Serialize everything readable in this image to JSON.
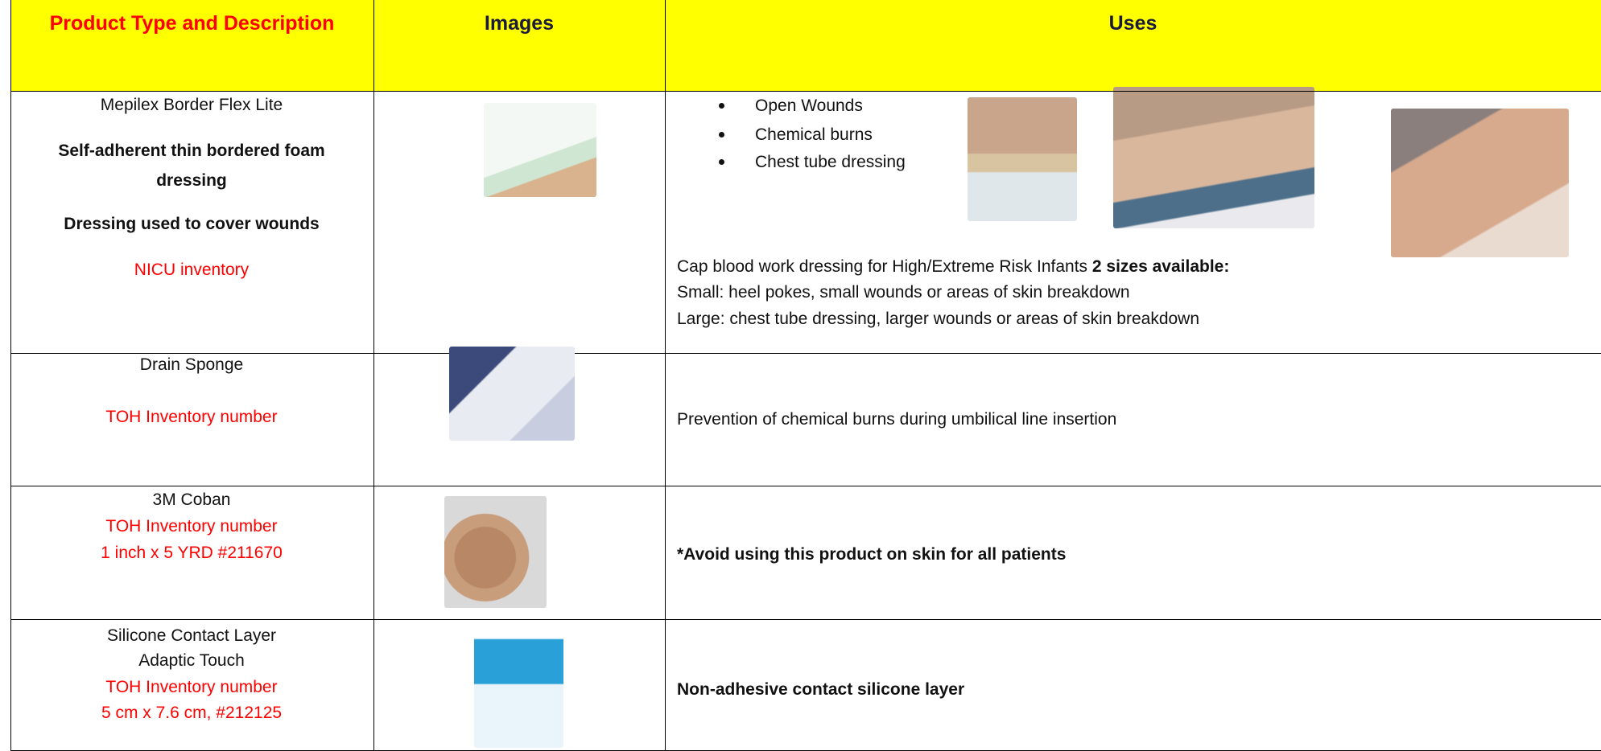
{
  "header": {
    "columns": [
      "Product Type and Description",
      "Images",
      "Uses"
    ]
  },
  "rows": [
    {
      "product": [
        {
          "text": "Mepilex Border Flex Lite",
          "style": "normal"
        },
        {
          "text": "Self-adherent thin bordered foam",
          "style": "bold"
        },
        {
          "text": "dressing",
          "style": "bold"
        },
        {
          "text": "Dressing used to cover wounds",
          "style": "bold"
        },
        {
          "text": "NICU inventory",
          "style": "red"
        }
      ],
      "bullets": [
        "Open Wounds",
        "Chemical burns",
        "Chest tube dressing"
      ],
      "uses": [
        [
          {
            "text": "Cap blood work dressing for High/Extreme Risk Infants ",
            "bold": false
          },
          {
            "text": "2 sizes available:",
            "bold": true
          }
        ],
        [
          {
            "text": "Small: heel pokes, small wounds or areas of skin breakdown",
            "bold": false
          }
        ],
        [
          {
            "text": "Large: chest tube dressing, larger wounds or areas of skin breakdown",
            "bold": false
          }
        ]
      ]
    },
    {
      "product": [
        {
          "text": "Drain Sponge",
          "style": "normal"
        },
        {
          "text": "TOH Inventory number",
          "style": "red"
        }
      ],
      "bullets": [],
      "uses": [
        [
          {
            "text": "Prevention of chemical burns during umbilical line insertion",
            "bold": false
          }
        ]
      ]
    },
    {
      "product": [
        {
          "text": "3M Coban",
          "style": "normal"
        },
        {
          "text": "TOH Inventory number",
          "style": "red"
        },
        {
          "text": "1 inch x 5 YRD #211670",
          "style": "red"
        }
      ],
      "bullets": [],
      "uses": [
        [
          {
            "text": "*Avoid using this product on skin for all patients",
            "bold": true
          }
        ]
      ]
    },
    {
      "product": [
        {
          "text": "Silicone Contact Layer",
          "style": "normal"
        },
        {
          "text": "Adaptic Touch",
          "style": "normal"
        },
        {
          "text": "TOH Inventory number",
          "style": "red"
        },
        {
          "text": "5 cm x 7.6 cm, #212125",
          "style": "red"
        }
      ],
      "bullets": [],
      "uses": [
        [
          {
            "text": "Non-adhesive contact silicone layer",
            "bold": true
          }
        ]
      ]
    }
  ]
}
